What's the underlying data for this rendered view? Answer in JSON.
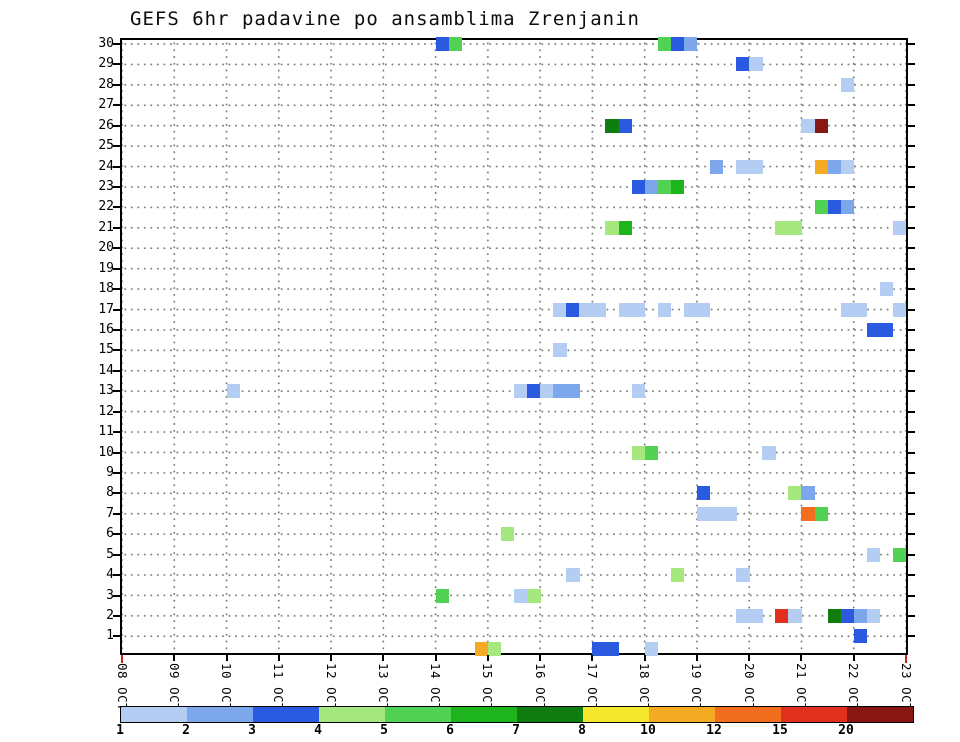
{
  "title": "GEFS 6hr padavine po ansamblima Zrenjanin",
  "chart_data": {
    "type": "heatmap",
    "title": "GEFS 6hr padavine po ansamblima Zrenjanin",
    "description": "GEFS ensemble 6-hour precipitation (mm) per ensemble member, Zrenjanin",
    "x_axis": {
      "labels": [
        "08 OCT",
        "09 OCT",
        "10 OCT",
        "11 OCT",
        "12 OCT",
        "13 OCT",
        "14 OCT",
        "15 OCT",
        "16 OCT",
        "17 OCT",
        "18 OCT",
        "19 OCT",
        "20 OCT",
        "21 OCT",
        "22 OCT",
        "23 OCT"
      ],
      "steps_per_day": 4,
      "total_columns": 60
    },
    "y_axis": {
      "labels": [
        30,
        29,
        28,
        27,
        26,
        25,
        24,
        23,
        22,
        21,
        20,
        19,
        18,
        17,
        16,
        15,
        14,
        13,
        12,
        11,
        10,
        9,
        8,
        7,
        6,
        5,
        4,
        3,
        2,
        1
      ]
    },
    "grid": true,
    "legend": {
      "position": "bottom",
      "boundaries": [
        "1",
        "2",
        "3",
        "4",
        "5",
        "6",
        "7",
        "8",
        "10",
        "12",
        "15",
        "20"
      ],
      "colors": [
        "#b4cdf2",
        "#7da7ec",
        "#2a5ae0",
        "#a6e87e",
        "#52d252",
        "#1eb41e",
        "#0f7d0f",
        "#f5e62e",
        "#f5aa23",
        "#f06e1e",
        "#e1301e",
        "#871710"
      ]
    },
    "value_colors": {
      "1": "#b4cdf2",
      "2": "#7da7ec",
      "3": "#2a5ae0",
      "4": "#a6e87e",
      "5": "#52d252",
      "6": "#1eb41e",
      "7": "#0f7d0f",
      "8": "#f5e62e",
      "10": "#f5aa23",
      "12": "#f06e1e",
      "15": "#e1301e",
      "21": "#871710"
    },
    "cells": [
      {
        "m": 30,
        "c": 24,
        "v": 3
      },
      {
        "m": 30,
        "c": 25,
        "v": 5
      },
      {
        "m": 30,
        "c": 41,
        "v": 5
      },
      {
        "m": 30,
        "c": 42,
        "v": 3
      },
      {
        "m": 30,
        "c": 43,
        "v": 2
      },
      {
        "m": 29,
        "c": 47,
        "v": 3
      },
      {
        "m": 29,
        "c": 48,
        "v": 1
      },
      {
        "m": 28,
        "c": 55,
        "v": 1
      },
      {
        "m": 26,
        "c": 37,
        "v": 7
      },
      {
        "m": 26,
        "c": 38,
        "v": 3
      },
      {
        "m": 26,
        "c": 52,
        "v": 1
      },
      {
        "m": 26,
        "c": 53,
        "v": 21
      },
      {
        "m": 24,
        "c": 45,
        "v": 2
      },
      {
        "m": 24,
        "c": 47,
        "v": 1
      },
      {
        "m": 24,
        "c": 48,
        "v": 1
      },
      {
        "m": 24,
        "c": 53,
        "v": 10
      },
      {
        "m": 24,
        "c": 54,
        "v": 2
      },
      {
        "m": 24,
        "c": 55,
        "v": 1
      },
      {
        "m": 23,
        "c": 39,
        "v": 3
      },
      {
        "m": 23,
        "c": 40,
        "v": 2
      },
      {
        "m": 23,
        "c": 41,
        "v": 5
      },
      {
        "m": 23,
        "c": 42,
        "v": 6
      },
      {
        "m": 22,
        "c": 53,
        "v": 5
      },
      {
        "m": 22,
        "c": 54,
        "v": 3
      },
      {
        "m": 22,
        "c": 55,
        "v": 2
      },
      {
        "m": 21,
        "c": 37,
        "v": 4
      },
      {
        "m": 21,
        "c": 38,
        "v": 6
      },
      {
        "m": 21,
        "c": 50,
        "v": 4
      },
      {
        "m": 21,
        "c": 51,
        "v": 4
      },
      {
        "m": 21,
        "c": 59,
        "v": 1
      },
      {
        "m": 18,
        "c": 58,
        "v": 1
      },
      {
        "m": 17,
        "c": 33,
        "v": 1
      },
      {
        "m": 17,
        "c": 34,
        "v": 3
      },
      {
        "m": 17,
        "c": 35,
        "v": 1
      },
      {
        "m": 17,
        "c": 36,
        "v": 1
      },
      {
        "m": 17,
        "c": 38,
        "v": 1
      },
      {
        "m": 17,
        "c": 39,
        "v": 1
      },
      {
        "m": 17,
        "c": 41,
        "v": 1
      },
      {
        "m": 17,
        "c": 43,
        "v": 1
      },
      {
        "m": 17,
        "c": 44,
        "v": 1
      },
      {
        "m": 17,
        "c": 55,
        "v": 1
      },
      {
        "m": 17,
        "c": 56,
        "v": 1
      },
      {
        "m": 17,
        "c": 59,
        "v": 1
      },
      {
        "m": 16,
        "c": 57,
        "v": 3
      },
      {
        "m": 16,
        "c": 58,
        "v": 3
      },
      {
        "m": 15,
        "c": 33,
        "v": 1
      },
      {
        "m": 13,
        "c": 8,
        "v": 1
      },
      {
        "m": 13,
        "c": 30,
        "v": 1
      },
      {
        "m": 13,
        "c": 31,
        "v": 3
      },
      {
        "m": 13,
        "c": 32,
        "v": 1
      },
      {
        "m": 13,
        "c": 33,
        "v": 2
      },
      {
        "m": 13,
        "c": 34,
        "v": 2
      },
      {
        "m": 13,
        "c": 39,
        "v": 1
      },
      {
        "m": 10,
        "c": 39,
        "v": 4
      },
      {
        "m": 10,
        "c": 40,
        "v": 5
      },
      {
        "m": 10,
        "c": 49,
        "v": 1
      },
      {
        "m": 8,
        "c": 44,
        "v": 3
      },
      {
        "m": 8,
        "c": 51,
        "v": 4
      },
      {
        "m": 8,
        "c": 52,
        "v": 2
      },
      {
        "m": 7,
        "c": 44,
        "v": 1
      },
      {
        "m": 7,
        "c": 45,
        "v": 1
      },
      {
        "m": 7,
        "c": 46,
        "v": 1
      },
      {
        "m": 7,
        "c": 52,
        "v": 12
      },
      {
        "m": 7,
        "c": 53,
        "v": 5
      },
      {
        "m": 6,
        "c": 29,
        "v": 4
      },
      {
        "m": 5,
        "c": 57,
        "v": 1
      },
      {
        "m": 5,
        "c": 59,
        "v": 5
      },
      {
        "m": 4,
        "c": 34,
        "v": 1
      },
      {
        "m": 4,
        "c": 42,
        "v": 4
      },
      {
        "m": 4,
        "c": 47,
        "v": 1
      },
      {
        "m": 3,
        "c": 24,
        "v": 5
      },
      {
        "m": 3,
        "c": 30,
        "v": 1
      },
      {
        "m": 3,
        "c": 31,
        "v": 4
      },
      {
        "m": 2,
        "c": 47,
        "v": 1
      },
      {
        "m": 2,
        "c": 48,
        "v": 1
      },
      {
        "m": 2,
        "c": 50,
        "v": 15
      },
      {
        "m": 2,
        "c": 51,
        "v": 1
      },
      {
        "m": 2,
        "c": 54,
        "v": 7
      },
      {
        "m": 2,
        "c": 55,
        "v": 3
      },
      {
        "m": 2,
        "c": 56,
        "v": 2
      },
      {
        "m": 2,
        "c": 57,
        "v": 1
      },
      {
        "m": 1,
        "c": 56,
        "v": 3
      },
      {
        "m": 0,
        "c": 27,
        "v": 10
      },
      {
        "m": 0,
        "c": 28,
        "v": 4
      },
      {
        "m": 0,
        "c": 36,
        "v": 3
      },
      {
        "m": 0,
        "c": 37,
        "v": 3
      },
      {
        "m": 0,
        "c": 40,
        "v": 1
      }
    ]
  }
}
